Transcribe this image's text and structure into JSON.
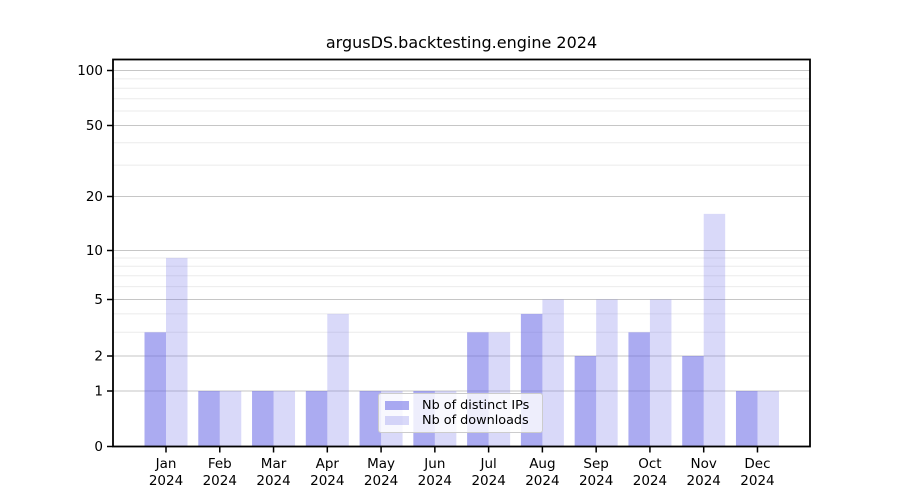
{
  "title": "argusDS.backtesting.engine 2024",
  "legend": {
    "items": [
      {
        "label": "Nb of distinct IPs",
        "base_color": "#6666e6",
        "alpha": 0.55,
        "effective_color": "#ababf1"
      },
      {
        "label": "Nb of downloads",
        "base_color": "#6666e6",
        "alpha": 0.25,
        "effective_color": "#d9d9f8"
      }
    ],
    "position": "lower center"
  },
  "chart_data": {
    "type": "bar",
    "title": "argusDS.backtesting.engine 2024",
    "categories": [
      "Jan 2024",
      "Feb 2024",
      "Mar 2024",
      "Apr 2024",
      "May 2024",
      "Jun 2024",
      "Jul 2024",
      "Aug 2024",
      "Sep 2024",
      "Oct 2024",
      "Nov 2024",
      "Dec 2024"
    ],
    "x_tick_months": [
      "Jan",
      "Feb",
      "Mar",
      "Apr",
      "May",
      "Jun",
      "Jul",
      "Aug",
      "Sep",
      "Oct",
      "Nov",
      "Dec"
    ],
    "x_tick_year": "2024",
    "series": [
      {
        "name": "Nb of distinct IPs",
        "values": [
          3,
          1,
          1,
          1,
          1,
          1,
          3,
          4,
          2,
          3,
          2,
          1
        ]
      },
      {
        "name": "Nb of downloads",
        "values": [
          9,
          1,
          1,
          4,
          1,
          1,
          3,
          5,
          5,
          5,
          16,
          1
        ]
      }
    ],
    "yticks": [
      0,
      1,
      2,
      5,
      10,
      20,
      50,
      100
    ],
    "minor_yticks": [
      3,
      4,
      6,
      7,
      8,
      9,
      30,
      40,
      60,
      70,
      80,
      90
    ],
    "yscale": "symlog",
    "ylim": [
      0,
      113
    ],
    "grid": true,
    "xlabel": "",
    "ylabel": "",
    "colors": {
      "bar_base": "#6666e6",
      "alpha_distinct_ips": 0.55,
      "alpha_downloads": 0.25,
      "grid_major": "#c6c6c6",
      "grid_minor": "#ebebeb",
      "spine": "#000000",
      "text": "#000000"
    }
  }
}
